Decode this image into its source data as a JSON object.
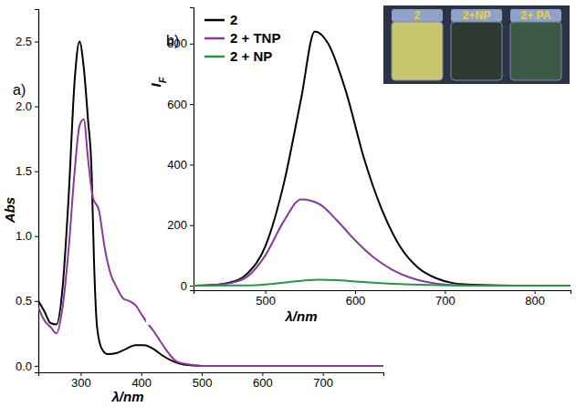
{
  "chart_data": [
    {
      "type": "line",
      "panel": "a)",
      "xlabel": "λ/nm",
      "ylabel": "Abs",
      "xlim": [
        230,
        800
      ],
      "ylim": [
        -0.05,
        2.75
      ],
      "xticks": [
        300,
        400,
        500,
        600,
        700
      ],
      "yticks": [
        {
          "value": 0,
          "label": "0.0"
        },
        0.5,
        {
          "value": 1,
          "label": "1.0"
        },
        1.5,
        {
          "value": 2,
          "label": "2.0"
        },
        2.5
      ],
      "series": [
        {
          "color": "#000000",
          "x": [
            230,
            240,
            250,
            260,
            270,
            280,
            290,
            298,
            305,
            312,
            318,
            322,
            327,
            335,
            345,
            360,
            375,
            390,
            405,
            420,
            435,
            450,
            470,
            500,
            600,
            700,
            800
          ],
          "values": [
            0.5,
            0.42,
            0.33,
            0.32,
            0.6,
            1.3,
            2.2,
            2.5,
            2.3,
            1.9,
            1.5,
            0.8,
            0.3,
            0.13,
            0.09,
            0.1,
            0.13,
            0.16,
            0.16,
            0.13,
            0.08,
            0.04,
            0.01,
            0,
            0,
            0,
            0
          ]
        },
        {
          "color": "#8a3a9e",
          "x": [
            230,
            240,
            250,
            260,
            270,
            280,
            290,
            298,
            305,
            312,
            320,
            330,
            340,
            350,
            360,
            370,
            380,
            390,
            400,
            410,
            420,
            430,
            440,
            450,
            460,
            480,
            500,
            800
          ],
          "values": [
            0.45,
            0.35,
            0.3,
            0.25,
            0.45,
            0.9,
            1.5,
            1.85,
            1.9,
            1.6,
            1.3,
            1.2,
            0.9,
            0.7,
            0.6,
            0.52,
            0.5,
            0.47,
            0.4,
            0.33,
            0.27,
            0.2,
            0.13,
            0.07,
            0.03,
            0.01,
            0,
            0
          ]
        }
      ]
    },
    {
      "type": "line",
      "panel": "b)",
      "xlabel": "λ/nm",
      "ylabel": {
        "text": "I",
        "subscript": "F"
      },
      "xlim": [
        420,
        840
      ],
      "ylim": [
        -15,
        920
      ],
      "xticks": [
        500,
        600,
        700,
        800
      ],
      "yticks": [
        0,
        200,
        400,
        600,
        800
      ],
      "legend": "top-left",
      "series": [
        {
          "name": "2",
          "color": "#000000",
          "x": [
            420,
            440,
            460,
            480,
            500,
            520,
            540,
            555,
            570,
            590,
            610,
            630,
            650,
            670,
            690,
            710,
            740,
            780,
            840
          ],
          "values": [
            0,
            2,
            10,
            40,
            130,
            330,
            620,
            840,
            800,
            640,
            420,
            250,
            130,
            60,
            25,
            8,
            2,
            0,
            0
          ]
        },
        {
          "name": "2 + TNP",
          "color": "#8a3a9e",
          "x": [
            420,
            440,
            460,
            480,
            500,
            520,
            540,
            560,
            580,
            600,
            620,
            640,
            660,
            680,
            700,
            740,
            840
          ],
          "values": [
            0,
            2,
            8,
            30,
            100,
            210,
            285,
            270,
            215,
            150,
            95,
            55,
            28,
            12,
            4,
            0,
            0
          ]
        },
        {
          "name": "2 + NP",
          "color": "#1f9a4a",
          "x": [
            420,
            480,
            500,
            520,
            540,
            560,
            580,
            600,
            620,
            650,
            700,
            750,
            840
          ],
          "values": [
            0,
            1,
            4,
            10,
            16,
            20,
            18,
            14,
            10,
            5,
            1,
            0,
            0
          ]
        }
      ]
    }
  ],
  "inset": {
    "labels": [
      "2",
      "2+NP",
      "2+ PA"
    ]
  }
}
